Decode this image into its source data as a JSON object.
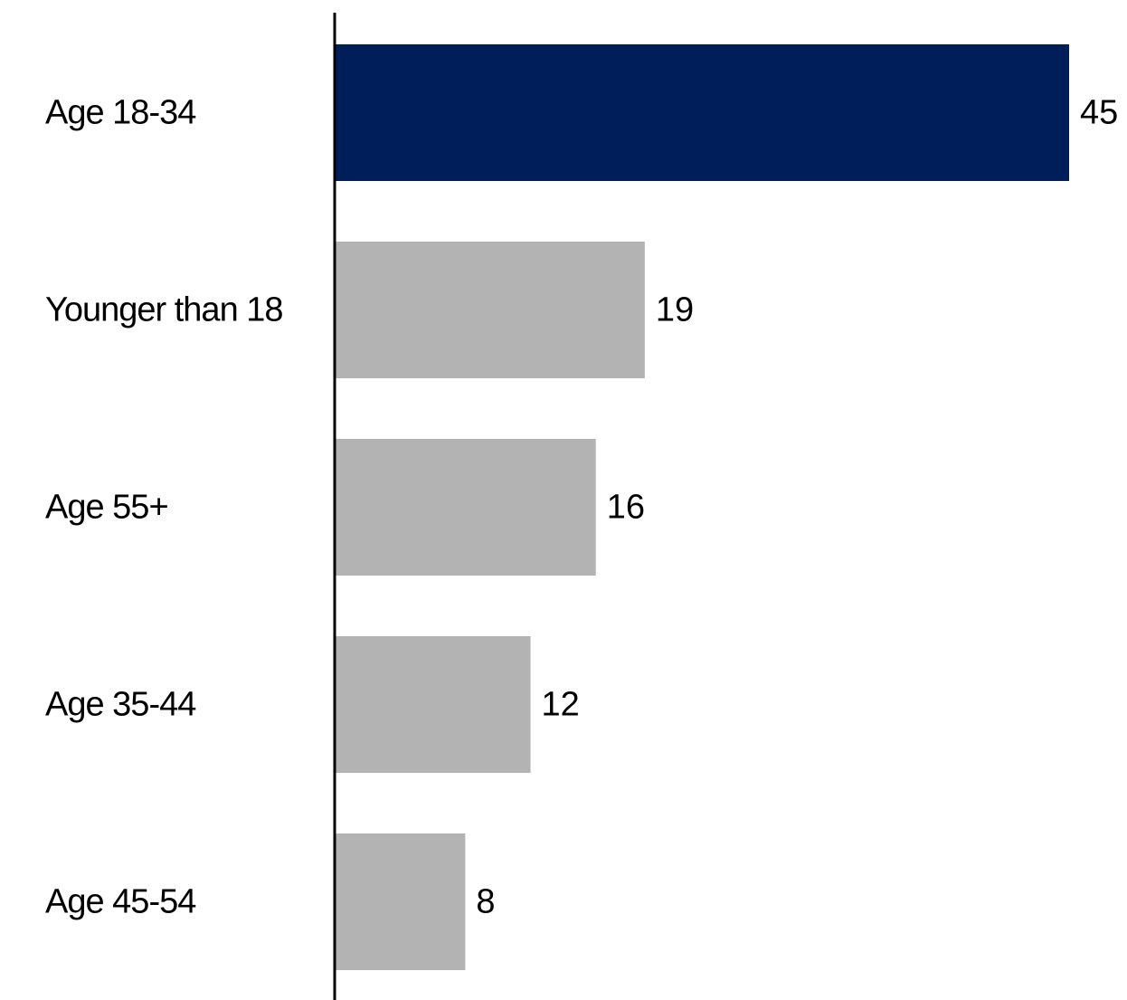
{
  "chart_data": {
    "type": "bar",
    "orientation": "horizontal",
    "categories": [
      "Age 18-34",
      "Younger than 18",
      "Age 55+",
      "Age 35-44",
      "Age 45-54"
    ],
    "values": [
      45,
      19,
      16,
      12,
      8
    ],
    "value_labels": [
      "45",
      "19",
      "16",
      "12",
      "8"
    ],
    "highlight_index": 0,
    "title": "",
    "xlabel": "",
    "ylabel": "",
    "xlim": [
      0,
      45
    ],
    "grid": false,
    "colors": {
      "highlight": "#001e5a",
      "default": "#b3b3b3",
      "axis": "#000000",
      "text": "#000000"
    }
  }
}
